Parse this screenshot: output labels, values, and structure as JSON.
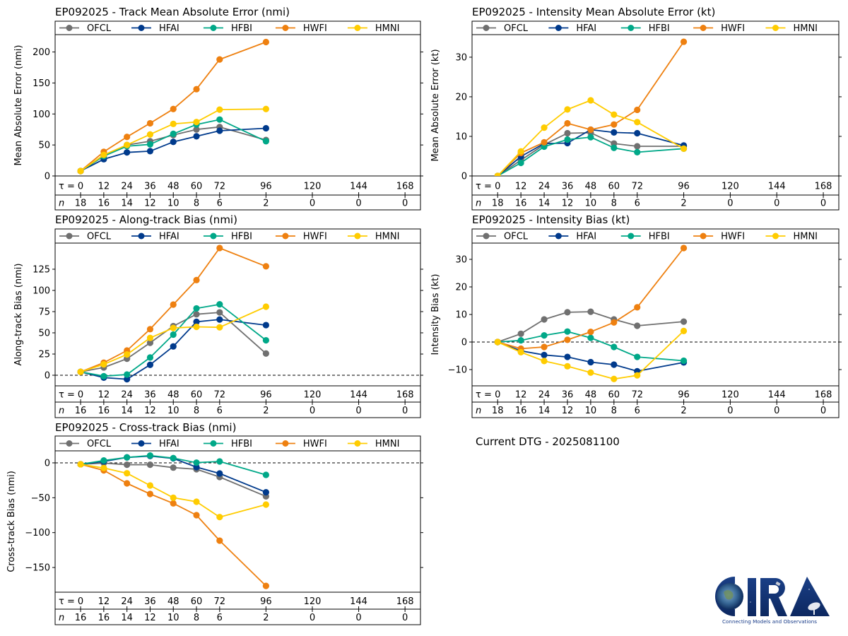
{
  "dtg_label": "Current DTG - 2025081100",
  "logo": {
    "name": "CIRA",
    "tagline": "Connecting Models and Observations"
  },
  "series_styles": [
    {
      "name": "OFCL",
      "color": "#707070"
    },
    {
      "name": "HFAI",
      "color": "#003a8c"
    },
    {
      "name": "HFBI",
      "color": "#00a888"
    },
    {
      "name": "HWFI",
      "color": "#ee8010"
    },
    {
      "name": "HMNI",
      "color": "#ffcc00"
    }
  ],
  "chart_data": [
    {
      "id": "track-mae",
      "type": "line",
      "title": "EP092025 - Track Mean Absolute Error (nmi)",
      "ylabel": "Mean Absolute Error (nmi)",
      "xlabel": "τ",
      "tau_ticks": [
        0,
        12,
        24,
        36,
        48,
        60,
        72,
        96,
        120,
        144,
        168
      ],
      "n_counts": [
        18,
        16,
        14,
        12,
        10,
        8,
        6,
        2,
        0,
        0,
        0
      ],
      "x": [
        0,
        12,
        24,
        36,
        48,
        60,
        72,
        96
      ],
      "yticks": [
        0,
        50,
        100,
        150,
        200
      ],
      "ylim": [
        0,
        228
      ],
      "xlim": [
        -13.2,
        176
      ],
      "zero_line": false,
      "legend": "top",
      "series": [
        {
          "name": "OFCL",
          "values": [
            8,
            32,
            50,
            56,
            66,
            75,
            79,
            58
          ]
        },
        {
          "name": "HFAI",
          "values": [
            8,
            27,
            38,
            40,
            55,
            64,
            73,
            77
          ]
        },
        {
          "name": "HFBI",
          "values": [
            8,
            32,
            48,
            51,
            68,
            83,
            91,
            56
          ]
        },
        {
          "name": "HWFI",
          "values": [
            8,
            39,
            63,
            85,
            108,
            140,
            188,
            216
          ]
        },
        {
          "name": "HMNI",
          "values": [
            8,
            34,
            50,
            67,
            84,
            87,
            107,
            108
          ]
        }
      ]
    },
    {
      "id": "intensity-mae",
      "type": "line",
      "title": "EP092025 - Intensity Mean Absolute Error (kt)",
      "ylabel": "Mean Absolute Error (kt)",
      "xlabel": "τ",
      "tau_ticks": [
        0,
        12,
        24,
        36,
        48,
        60,
        72,
        96,
        120,
        144,
        168
      ],
      "n_counts": [
        18,
        16,
        14,
        12,
        10,
        8,
        6,
        2,
        0,
        0,
        0
      ],
      "x": [
        0,
        12,
        24,
        36,
        48,
        60,
        72,
        96
      ],
      "yticks": [
        0,
        10,
        20,
        30
      ],
      "ylim": [
        0,
        35.7
      ],
      "xlim": [
        -13.2,
        176
      ],
      "zero_line": false,
      "legend": "top",
      "series": [
        {
          "name": "OFCL",
          "values": [
            0,
            4.0,
            7.9,
            10.8,
            10.9,
            8.2,
            7.5,
            7.5
          ]
        },
        {
          "name": "HFAI",
          "values": [
            0,
            4.9,
            8.2,
            8.3,
            11.7,
            11.0,
            10.8,
            7.7
          ]
        },
        {
          "name": "HFBI",
          "values": [
            0,
            3.3,
            7.4,
            9.2,
            9.8,
            7.1,
            6.0,
            6.9
          ]
        },
        {
          "name": "HWFI",
          "values": [
            0,
            5.8,
            8.5,
            13.3,
            11.7,
            13.0,
            16.7,
            33.9
          ]
        },
        {
          "name": "HMNI",
          "values": [
            0,
            6.2,
            12.2,
            16.8,
            19.1,
            15.5,
            13.6,
            6.9
          ]
        }
      ]
    },
    {
      "id": "along-track-bias",
      "type": "line",
      "title": "EP092025 - Along-track Bias (nmi)",
      "ylabel": "Along-track Bias (nmi)",
      "xlabel": "τ",
      "tau_ticks": [
        0,
        12,
        24,
        36,
        48,
        60,
        72,
        96,
        120,
        144,
        168
      ],
      "n_counts": [
        16,
        16,
        14,
        12,
        10,
        8,
        6,
        2,
        0,
        0,
        0
      ],
      "x": [
        0,
        12,
        24,
        36,
        48,
        60,
        72,
        96
      ],
      "yticks": [
        0,
        25,
        50,
        75,
        100,
        125
      ],
      "ylim": [
        -12.5,
        155.8
      ],
      "xlim": [
        -13.2,
        176
      ],
      "zero_line": true,
      "legend": "top",
      "series": [
        {
          "name": "OFCL",
          "values": [
            4,
            9.2,
            19.5,
            38.2,
            57.9,
            71.9,
            74.1,
            25.6
          ]
        },
        {
          "name": "HFAI",
          "values": [
            4,
            -2.8,
            -4.7,
            12.3,
            34,
            63,
            65.7,
            59.1
          ]
        },
        {
          "name": "HFBI",
          "values": [
            4,
            -1.1,
            0.8,
            20.9,
            47.9,
            78.8,
            83.6,
            41.2
          ]
        },
        {
          "name": "HWFI",
          "values": [
            4,
            14.8,
            29.2,
            54.3,
            83.3,
            112.2,
            150,
            128.4
          ]
        },
        {
          "name": "HMNI",
          "values": [
            4,
            12.8,
            24.5,
            44,
            55.7,
            57.1,
            56.5,
            80.8
          ]
        }
      ]
    },
    {
      "id": "intensity-bias",
      "type": "line",
      "title": "EP092025 - Intensity Bias (kt)",
      "ylabel": "Intensity Bias (kt)",
      "xlabel": "τ",
      "tau_ticks": [
        0,
        12,
        24,
        36,
        48,
        60,
        72,
        96,
        120,
        144,
        168
      ],
      "n_counts": [
        18,
        16,
        14,
        12,
        10,
        8,
        6,
        2,
        0,
        0,
        0
      ],
      "x": [
        0,
        12,
        24,
        36,
        48,
        60,
        72,
        96
      ],
      "yticks": [
        -10,
        0,
        10,
        20,
        30
      ],
      "ylim": [
        -15.9,
        35.9
      ],
      "xlim": [
        -13.2,
        176
      ],
      "zero_line": true,
      "legend": "top",
      "series": [
        {
          "name": "OFCL",
          "values": [
            0,
            3.0,
            8.2,
            10.8,
            11.0,
            8.2,
            5.9,
            7.4
          ]
        },
        {
          "name": "HFAI",
          "values": [
            0,
            -3.2,
            -4.7,
            -5.4,
            -7.3,
            -8.2,
            -10.6,
            -7.4
          ]
        },
        {
          "name": "HFBI",
          "values": [
            0,
            0.6,
            2.4,
            3.8,
            1.5,
            -1.8,
            -5.4,
            -6.8
          ]
        },
        {
          "name": "HWFI",
          "values": [
            0,
            -2.4,
            -1.8,
            0.8,
            3.7,
            7.1,
            12.6,
            34.1
          ]
        },
        {
          "name": "HMNI",
          "values": [
            0,
            -3.7,
            -6.9,
            -8.8,
            -11.1,
            -13.4,
            -12.1,
            4.0
          ]
        }
      ]
    },
    {
      "id": "cross-track-bias",
      "type": "line",
      "title": "EP092025 - Cross-track Bias (nmi)",
      "ylabel": "Cross-track Bias (nmi)",
      "xlabel": "τ",
      "tau_ticks": [
        0,
        12,
        24,
        36,
        48,
        60,
        72,
        96,
        120,
        144,
        168
      ],
      "n_counts": [
        16,
        16,
        14,
        12,
        10,
        8,
        6,
        2,
        0,
        0,
        0
      ],
      "x": [
        0,
        12,
        24,
        36,
        48,
        60,
        72,
        96
      ],
      "yticks": [
        -150,
        -100,
        -50,
        0
      ],
      "ylim": [
        -185.4,
        17.2
      ],
      "xlim": [
        -13.2,
        176
      ],
      "zero_line": true,
      "legend": "top",
      "series": [
        {
          "name": "OFCL",
          "values": [
            -2,
            -0.3,
            -2.7,
            -2.7,
            -6.8,
            -9.1,
            -20.3,
            -48
          ]
        },
        {
          "name": "HFAI",
          "values": [
            -2,
            2,
            7.8,
            9.8,
            6.4,
            -6.1,
            -15.2,
            -42.2
          ]
        },
        {
          "name": "HFBI",
          "values": [
            -2,
            3.4,
            7.8,
            10.5,
            6.8,
            0.3,
            2,
            -17.2
          ]
        },
        {
          "name": "HWFI",
          "values": [
            -2,
            -10.8,
            -29.4,
            -44.6,
            -58.1,
            -75,
            -111.5,
            -176.4
          ]
        },
        {
          "name": "HMNI",
          "values": [
            -2,
            -7.4,
            -14.9,
            -32.4,
            -50,
            -55.7,
            -77.7,
            -59.8
          ]
        }
      ]
    }
  ]
}
